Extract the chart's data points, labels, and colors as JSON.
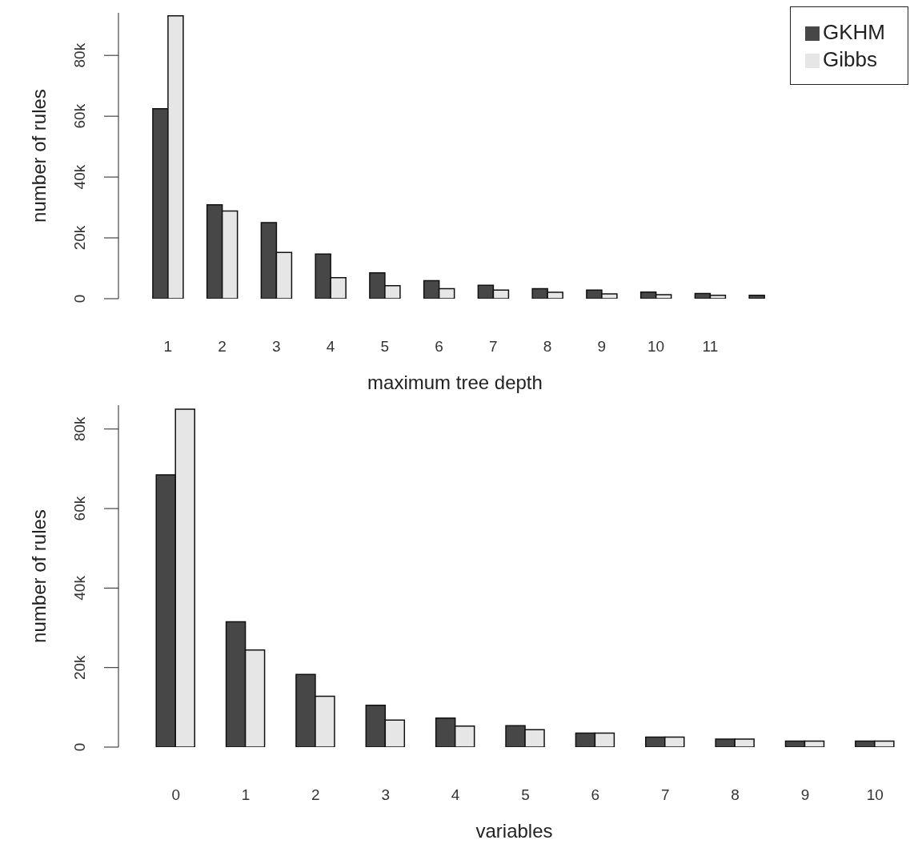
{
  "chart_data": [
    {
      "type": "bar",
      "categories": [
        "1",
        "2",
        "3",
        "4",
        "5",
        "6",
        "7",
        "8",
        "9",
        "10",
        "11",
        null
      ],
      "xlabel": "maximum tree depth",
      "ylabel": "number of rules",
      "ylim": [
        0,
        94000
      ],
      "yticks": [
        0,
        {
          "value": 20000,
          "label": "20k"
        },
        {
          "value": 40000,
          "label": "40k"
        },
        {
          "value": 60000,
          "label": "60k"
        },
        {
          "value": 80000,
          "label": "80k"
        }
      ],
      "legend": "top right",
      "series": [
        {
          "name": "GKHM",
          "color": "#474747",
          "values": [
            62500,
            30900,
            25000,
            14700,
            8500,
            5900,
            4400,
            3300,
            2800,
            2200,
            1700,
            1100
          ]
        },
        {
          "name": "Gibbs",
          "color": "#e6e6e6",
          "values": [
            93000,
            28800,
            15200,
            6900,
            4300,
            3300,
            2800,
            2100,
            1600,
            1300,
            1100,
            null
          ]
        }
      ]
    },
    {
      "type": "bar",
      "categories": [
        "0",
        "1",
        "2",
        "3",
        "4",
        "5",
        "6",
        "7",
        "8",
        "9",
        "10"
      ],
      "xlabel": "variables",
      "ylabel": "number of rules",
      "ylim": [
        0,
        86000
      ],
      "yticks": [
        0,
        {
          "value": 20000,
          "label": "20k"
        },
        {
          "value": 40000,
          "label": "40k"
        },
        {
          "value": 60000,
          "label": "60k"
        },
        {
          "value": 80000,
          "label": "80k"
        }
      ],
      "series": [
        {
          "color": "#474747",
          "values": [
            68500,
            31500,
            18300,
            10500,
            7300,
            5400,
            3500,
            2500,
            2000,
            1500,
            1500
          ]
        },
        {
          "color": "#e6e6e6",
          "values": [
            85000,
            24400,
            12800,
            6800,
            5300,
            4400,
            3500,
            2500,
            2000,
            1500,
            1500
          ]
        }
      ]
    }
  ]
}
